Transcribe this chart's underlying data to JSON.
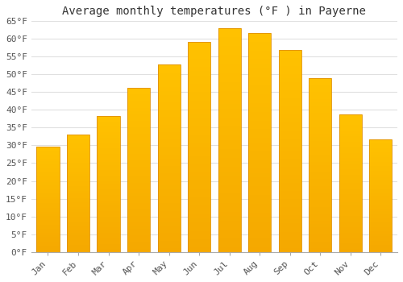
{
  "months": [
    "Jan",
    "Feb",
    "Mar",
    "Apr",
    "May",
    "Jun",
    "Jul",
    "Aug",
    "Sep",
    "Oct",
    "Nov",
    "Dec"
  ],
  "values": [
    29.7,
    33.1,
    38.3,
    46.2,
    52.7,
    59.2,
    63.0,
    61.7,
    57.0,
    48.9,
    38.8,
    31.8
  ],
  "title": "Average monthly temperatures (°F ) in Payerne",
  "bar_color_top": "#FFC200",
  "bar_color_bottom": "#F5A800",
  "bar_edge_color": "#E09000",
  "ylim": [
    0,
    65
  ],
  "ytick_step": 5,
  "background_color": "#ffffff",
  "grid_color": "#e0e0e0",
  "title_fontsize": 10,
  "tick_fontsize": 8,
  "font_family": "monospace"
}
